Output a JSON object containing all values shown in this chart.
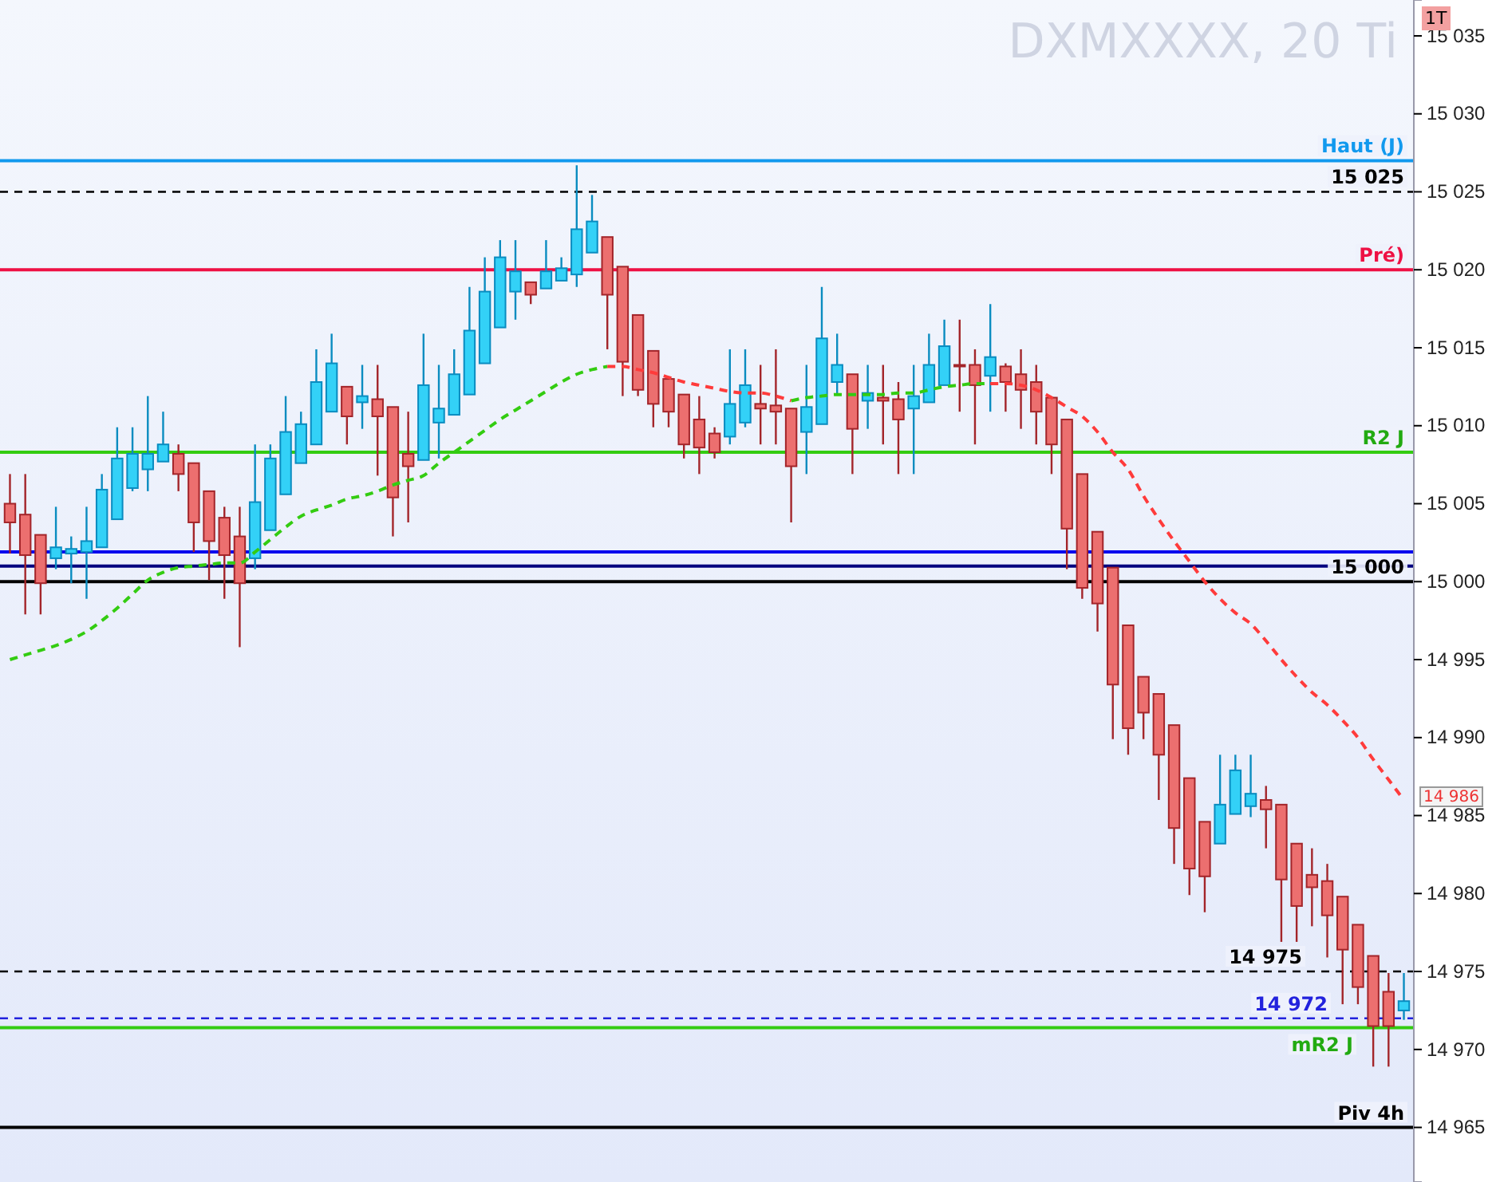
{
  "chart_data": {
    "type": "candlestick",
    "title": "DXMXXXX, 20 Ti",
    "categories": [
      null,
      null,
      null,
      null,
      null,
      null,
      null,
      null,
      null,
      null,
      null,
      null,
      null,
      null,
      null,
      null,
      null,
      null,
      null,
      null,
      null,
      null,
      null,
      null,
      null,
      null,
      null,
      null,
      null,
      null,
      null,
      null,
      null,
      null,
      null,
      null,
      null,
      null,
      null,
      null,
      null,
      null,
      null,
      null,
      null,
      null,
      null,
      null,
      null,
      null,
      null,
      null,
      null,
      null,
      null,
      null,
      null,
      null,
      null,
      null,
      null,
      null,
      null,
      null,
      null,
      null,
      null,
      null,
      null,
      null,
      null,
      null,
      null,
      null,
      null,
      null,
      null,
      null,
      null,
      null,
      null,
      null,
      null,
      null,
      null,
      null,
      null,
      null,
      null,
      null,
      null,
      null
    ],
    "ohlc": [
      [
        15005.0,
        15006.9,
        15001.8,
        15003.8
      ],
      [
        15004.3,
        15006.9,
        14997.9,
        15001.7
      ],
      [
        15003.0,
        15003.0,
        14997.9,
        14999.9
      ],
      [
        15001.5,
        15004.8,
        15000.8,
        15002.2
      ],
      [
        15001.8,
        15002.9,
        14999.9,
        15002.1
      ],
      [
        15001.9,
        15004.8,
        14998.9,
        15002.6
      ],
      [
        15002.2,
        15006.9,
        15002.2,
        15005.9
      ],
      [
        15004.0,
        15009.9,
        15004.0,
        15007.9
      ],
      [
        15006.0,
        15009.9,
        15005.8,
        15008.2
      ],
      [
        15007.2,
        15011.9,
        15005.8,
        15008.2
      ],
      [
        15007.7,
        15010.9,
        15007.7,
        15008.8
      ],
      [
        15008.2,
        15008.8,
        15005.8,
        15006.9
      ],
      [
        15007.6,
        15007.6,
        15001.9,
        15003.8
      ],
      [
        15005.8,
        15005.8,
        15000.1,
        15002.6
      ],
      [
        15004.1,
        15004.8,
        14998.9,
        15001.7
      ],
      [
        15002.9,
        15004.8,
        14995.8,
        14999.9
      ],
      [
        15001.5,
        15008.8,
        15000.8,
        15005.1
      ],
      [
        15003.3,
        15008.8,
        15003.3,
        15007.9
      ],
      [
        15005.6,
        15011.9,
        15005.6,
        15009.6
      ],
      [
        15007.6,
        15010.9,
        15007.6,
        15010.1
      ],
      [
        15008.8,
        15014.9,
        15008.8,
        15012.8
      ],
      [
        15010.9,
        15015.9,
        15010.9,
        15014.0
      ],
      [
        15012.5,
        15012.5,
        15008.8,
        15010.6
      ],
      [
        15011.5,
        15013.9,
        15009.8,
        15011.9
      ],
      [
        15011.7,
        15013.9,
        15006.8,
        15010.6
      ],
      [
        15011.2,
        15011.2,
        15002.9,
        15005.4
      ],
      [
        15008.2,
        15010.9,
        15003.8,
        15007.4
      ],
      [
        15007.8,
        15015.9,
        15007.8,
        15012.6
      ],
      [
        15010.2,
        15013.9,
        15007.9,
        15011.1
      ],
      [
        15010.7,
        15014.9,
        15010.7,
        15013.3
      ],
      [
        15012.0,
        15018.9,
        15012.0,
        15016.1
      ],
      [
        15014.0,
        15020.8,
        15014.0,
        15018.6
      ],
      [
        15016.3,
        15021.9,
        15016.3,
        15020.8
      ],
      [
        15018.6,
        15021.9,
        15016.8,
        15019.9
      ],
      [
        15019.2,
        15019.2,
        15017.8,
        15018.4
      ],
      [
        15018.8,
        15021.9,
        15018.8,
        15019.9
      ],
      [
        15019.3,
        15020.8,
        15019.3,
        15020.1
      ],
      [
        15019.7,
        15026.7,
        15018.9,
        15022.6
      ],
      [
        15021.1,
        15024.8,
        15021.1,
        15023.1
      ],
      [
        15022.1,
        15022.1,
        15014.9,
        15018.4
      ],
      [
        15020.2,
        15020.2,
        15011.9,
        15014.1
      ],
      [
        15017.1,
        15017.1,
        15011.9,
        15012.3
      ],
      [
        15014.8,
        15014.8,
        15009.9,
        15011.4
      ],
      [
        15013.0,
        15013.0,
        15009.9,
        15010.9
      ],
      [
        15012.0,
        15012.0,
        15007.9,
        15008.8
      ],
      [
        15010.4,
        15011.9,
        15006.9,
        15008.6
      ],
      [
        15009.5,
        15009.9,
        15007.9,
        15008.3
      ],
      [
        15009.3,
        15014.9,
        15008.8,
        15011.4
      ],
      [
        15010.2,
        15014.9,
        15009.9,
        15012.6
      ],
      [
        15011.4,
        15013.9,
        15008.8,
        15011.1
      ],
      [
        15011.3,
        15014.9,
        15008.8,
        15010.9
      ],
      [
        15011.1,
        15011.1,
        15003.8,
        15007.4
      ],
      [
        15009.6,
        15013.9,
        15006.9,
        15011.2
      ],
      [
        15010.1,
        15018.9,
        15010.1,
        15015.6
      ],
      [
        15012.8,
        15015.9,
        15012.0,
        15013.9
      ],
      [
        15013.3,
        15013.3,
        15006.9,
        15009.8
      ],
      [
        15011.6,
        15013.9,
        15009.8,
        15012.1
      ],
      [
        15011.8,
        15013.9,
        15008.8,
        15011.6
      ],
      [
        15011.7,
        15012.8,
        15006.9,
        15010.4
      ],
      [
        15011.1,
        15013.9,
        15006.9,
        15011.9
      ],
      [
        15011.5,
        15015.9,
        15011.5,
        15013.9
      ],
      [
        15012.6,
        15016.8,
        15012.6,
        15015.1
      ],
      [
        15013.9,
        15016.8,
        15010.9,
        15013.8
      ],
      [
        15013.9,
        15014.9,
        15008.8,
        15012.6
      ],
      [
        15013.2,
        15017.8,
        15010.9,
        15014.4
      ],
      [
        15013.8,
        15014.0,
        15010.9,
        15012.8
      ],
      [
        15013.3,
        15014.9,
        15009.8,
        15012.3
      ],
      [
        15012.8,
        15013.9,
        15008.8,
        15010.9
      ],
      [
        15011.8,
        15011.8,
        15006.9,
        15008.8
      ],
      [
        15010.4,
        15010.4,
        15000.8,
        15003.4
      ],
      [
        15006.9,
        15006.9,
        14998.9,
        14999.6
      ],
      [
        15003.2,
        15003.2,
        14996.8,
        14998.6
      ],
      [
        15000.9,
        15000.9,
        14989.9,
        14993.4
      ],
      [
        14997.2,
        14997.2,
        14988.9,
        14990.6
      ],
      [
        14993.9,
        14993.9,
        14989.9,
        14991.6
      ],
      [
        14992.8,
        14992.8,
        14986.0,
        14988.9
      ],
      [
        14990.8,
        14990.8,
        14981.9,
        14984.2
      ],
      [
        14987.4,
        14987.4,
        14979.9,
        14981.6
      ],
      [
        14984.6,
        14984.6,
        14978.8,
        14981.1
      ],
      [
        14983.2,
        14988.9,
        14983.2,
        14985.7
      ],
      [
        14985.1,
        14988.9,
        14985.1,
        14987.9
      ],
      [
        14985.6,
        14988.9,
        14984.9,
        14986.4
      ],
      [
        14986.0,
        14986.9,
        14982.9,
        14985.4
      ],
      [
        14985.7,
        14985.7,
        14976.9,
        14980.9
      ],
      [
        14983.2,
        14983.2,
        14976.9,
        14979.2
      ],
      [
        14981.2,
        14982.9,
        14977.9,
        14980.4
      ],
      [
        14980.8,
        14981.9,
        14975.9,
        14978.6
      ],
      [
        14979.8,
        14979.8,
        14972.9,
        14976.4
      ],
      [
        14978.0,
        14978.0,
        14972.9,
        14974.0
      ],
      [
        14976.0,
        14976.0,
        14968.9,
        14971.5
      ],
      [
        14973.7,
        14974.9,
        14968.9,
        14971.5
      ],
      [
        14972.5,
        14974.9,
        14971.9,
        14973.1
      ]
    ],
    "series": [
      {
        "type": "line",
        "color": "#33cc11",
        "line_style": "dashed",
        "values": [
          14995.0,
          14995.3,
          14995.6,
          14995.9,
          14996.3,
          14996.8,
          14997.5,
          14998.3,
          14999.2,
          15000.1,
          15000.6,
          15000.9,
          15001.0,
          15001.1,
          15001.2,
          15001.2,
          15001.9,
          15002.7,
          15003.5,
          15004.2,
          15004.6,
          15004.9,
          15005.3,
          15005.5,
          15005.8,
          15006.2,
          15006.5,
          15006.8,
          15007.6,
          15008.3,
          15009.0,
          15009.7,
          15010.4,
          15011.0,
          15011.6,
          15012.2,
          15012.8,
          15013.3,
          15013.6,
          15013.8,
          null,
          null,
          null,
          null,
          null,
          null,
          null,
          null,
          null,
          null,
          null,
          15011.6,
          15011.8,
          15011.9,
          15012.0,
          15012.0,
          15012.0,
          15012.0,
          15012.1,
          15012.1,
          15012.3,
          15012.5,
          15012.6,
          15012.7,
          15012.7,
          null,
          null,
          null,
          null,
          null,
          null,
          null,
          null,
          null,
          null,
          null,
          null,
          null,
          null,
          null,
          null,
          null,
          null,
          null,
          null,
          null,
          null,
          null,
          null,
          null,
          null,
          null
        ]
      },
      {
        "type": "line",
        "color": "#ff3b3b",
        "line_style": "dashed",
        "values": [
          null,
          null,
          null,
          null,
          null,
          null,
          null,
          null,
          null,
          null,
          null,
          null,
          null,
          null,
          null,
          null,
          null,
          null,
          null,
          null,
          null,
          null,
          null,
          null,
          null,
          null,
          null,
          null,
          null,
          null,
          null,
          null,
          null,
          null,
          null,
          null,
          null,
          null,
          null,
          15013.8,
          15013.8,
          15013.6,
          15013.4,
          15013.1,
          15012.8,
          15012.6,
          15012.4,
          15012.2,
          15012.1,
          15012.1,
          15011.9,
          15011.6,
          null,
          null,
          null,
          null,
          null,
          null,
          null,
          null,
          null,
          null,
          null,
          null,
          15012.7,
          15012.7,
          15012.6,
          15012.3,
          15011.8,
          15011.2,
          15010.6,
          15009.6,
          15008.3,
          15007.2,
          15005.5,
          15004.0,
          15002.6,
          15001.3,
          15000.0,
          14998.9,
          14998.0,
          14997.3,
          14996.2,
          14995.0,
          14993.9,
          14992.9,
          14992.1,
          14991.1,
          14990.0,
          14988.6,
          14987.3,
          14986.0
        ]
      }
    ],
    "ylim": [
      14961.5,
      15037.3
    ],
    "yticks": [
      {
        "value": 14965,
        "label": "14 965"
      },
      {
        "value": 14970,
        "label": "14 970"
      },
      {
        "value": 14975,
        "label": "14 975"
      },
      {
        "value": 14980,
        "label": "14 980"
      },
      {
        "value": 14985,
        "label": "14 985"
      },
      {
        "value": 14990,
        "label": "14 990"
      },
      {
        "value": 14995,
        "label": "14 995"
      },
      {
        "value": 15000,
        "label": "15 000"
      },
      {
        "value": 15005,
        "label": "15 005"
      },
      {
        "value": 15010,
        "label": "15 010"
      },
      {
        "value": 15015,
        "label": "15 015"
      },
      {
        "value": 15020,
        "label": "15 020"
      },
      {
        "value": 15025,
        "label": "15 025"
      },
      {
        "value": 15030,
        "label": "15 030"
      },
      {
        "value": 15035,
        "label": "15 035"
      }
    ],
    "tick_labels": "y",
    "ref_lines": [
      {
        "axis": "y",
        "value": 15027,
        "label": "Haut (J)",
        "color": "#1199ee"
      },
      {
        "axis": "y",
        "value": 15025,
        "label": "15 025",
        "color": "#000000",
        "line_style": "dashed"
      },
      {
        "axis": "y",
        "value": 15020,
        "label": "Pré)",
        "color": "#ee1144"
      },
      {
        "axis": "y",
        "value": 15008.3,
        "label": "R2 J",
        "color": "#33cc11"
      },
      {
        "axis": "y",
        "value": 15001.9,
        "color": "#0000ee"
      },
      {
        "axis": "y",
        "value": 15001,
        "color": "#000080"
      },
      {
        "axis": "y",
        "value": 15000,
        "label": "15 000",
        "color": "#000000"
      },
      {
        "axis": "y",
        "value": 14975,
        "label": "14 975",
        "color": "#000000",
        "line_style": "dashed"
      },
      {
        "axis": "y",
        "value": 14972,
        "label": "14 972",
        "color": "#2222dd",
        "line_style": "dashed"
      },
      {
        "axis": "y",
        "value": 14971.4,
        "label": "mR2 J",
        "color": "#33cc11"
      },
      {
        "axis": "y",
        "value": 14965,
        "label": "Piv 4h",
        "color": "#000000"
      }
    ],
    "annotations": [
      "1T",
      "14 986"
    ]
  }
}
